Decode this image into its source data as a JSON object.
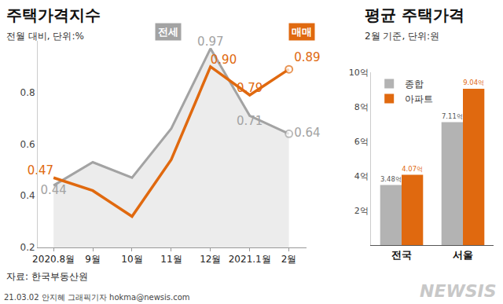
{
  "chart_data": [
    {
      "type": "line",
      "title": "주택가격지수",
      "subtitle": "전월 대비, 단위:%",
      "categories": [
        "2020.8월",
        "9월",
        "10월",
        "11월",
        "12월",
        "2021.1월",
        "2월"
      ],
      "series": [
        {
          "name": "전세",
          "color": "#a3a3a3",
          "type": "area",
          "values": [
            0.44,
            0.53,
            0.47,
            0.66,
            0.97,
            0.71,
            0.64
          ],
          "value_labels": [
            "0.44",
            null,
            null,
            null,
            "0.97",
            "0.71",
            "0.64"
          ]
        },
        {
          "name": "매매",
          "color": "#e0690f",
          "type": "line",
          "values": [
            0.47,
            0.42,
            0.32,
            0.54,
            0.9,
            0.79,
            0.89
          ],
          "value_labels": [
            "0.47",
            null,
            null,
            null,
            "0.90",
            "0.79",
            "0.89"
          ]
        }
      ],
      "ylim": [
        0.2,
        1.0
      ],
      "yticks": [
        0.2,
        0.4,
        0.6,
        0.8
      ],
      "grid": false,
      "data_labels": true
    },
    {
      "type": "bar",
      "title": "평균 주택가격",
      "subtitle": "2월 기준, 단위:원",
      "categories": [
        "전국",
        "서울"
      ],
      "series": [
        {
          "name": "종합",
          "color": "#b3b3b3",
          "values": [
            3.48,
            7.11
          ],
          "value_labels": [
            "3.48억",
            "7.11억"
          ]
        },
        {
          "name": "아파트",
          "color": "#e0690f",
          "values": [
            4.07,
            9.04
          ],
          "value_labels": [
            "4.07억",
            "9.04억"
          ]
        }
      ],
      "ylim": [
        0,
        10
      ],
      "yticks": [
        {
          "value": 2,
          "label": "2억"
        },
        {
          "value": 4,
          "label": "4억"
        },
        {
          "value": 6,
          "label": "6억"
        },
        {
          "value": 8,
          "label": "8억"
        },
        {
          "value": 10,
          "label": "10억"
        }
      ],
      "grid": false,
      "legend": "upper left",
      "data_labels": true
    }
  ],
  "source": "자료: 한국부동산원",
  "credit": "21.03.02 안지혜 그래픽기자 hokma@newsis.com",
  "logo": "NEWSIS"
}
